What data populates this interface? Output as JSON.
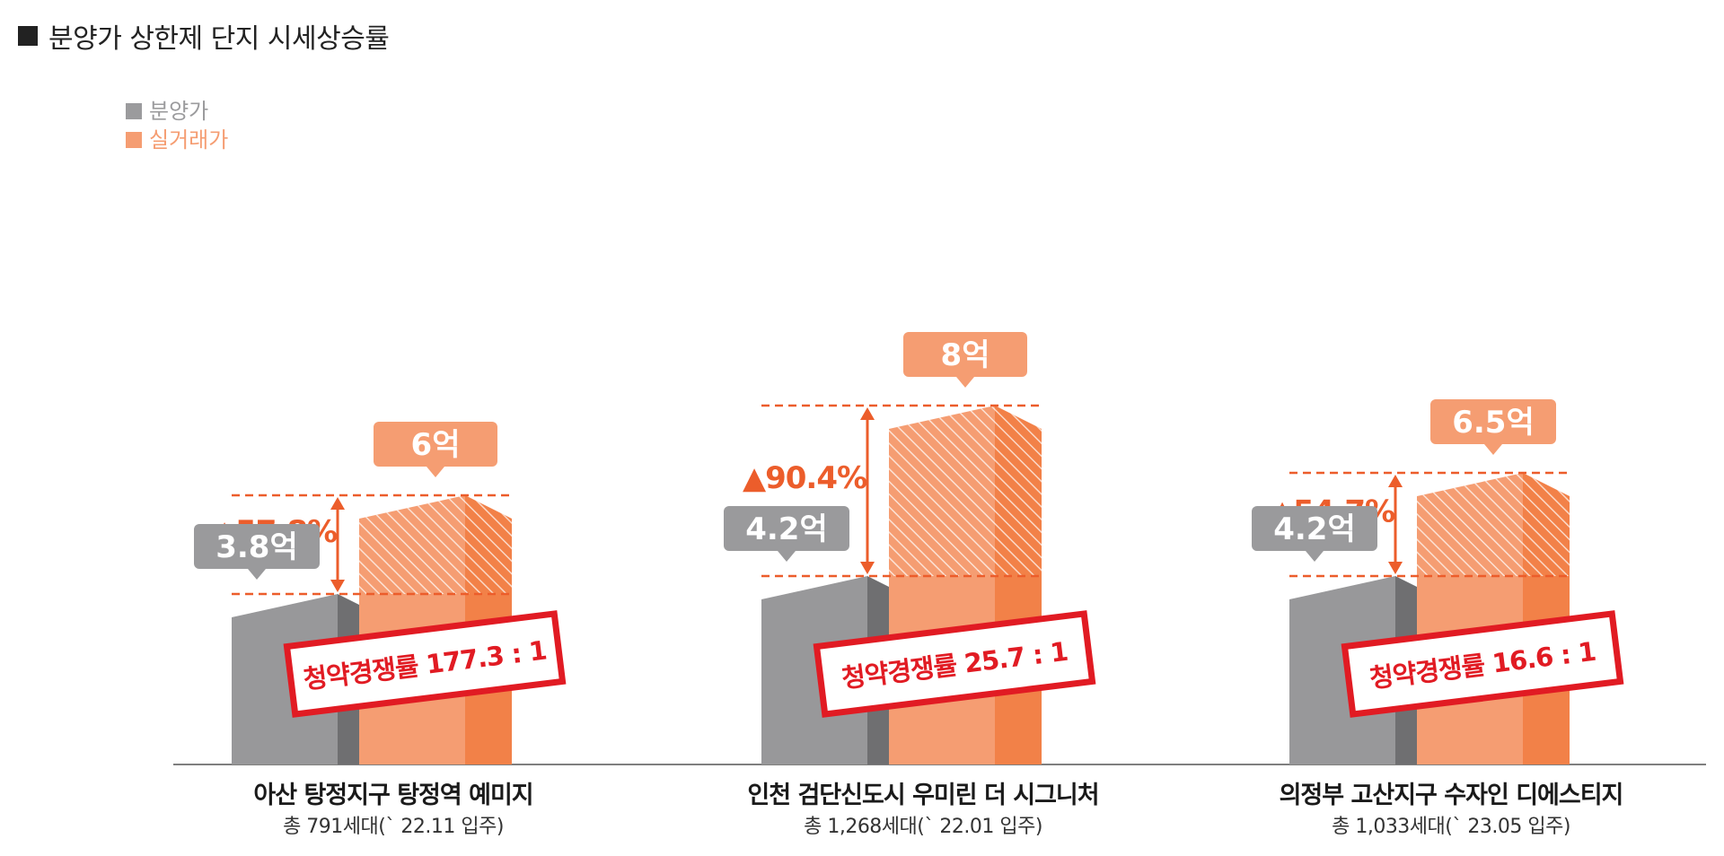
{
  "title": "분양가 상한제 단지 시세상승률",
  "legend": [
    {
      "label": "분양가",
      "color": "#9b9b9d"
    },
    {
      "label": "실거래가",
      "color": "#f59d72"
    }
  ],
  "colors": {
    "gray_front": "#98989a",
    "gray_side": "#6f6f71",
    "gray_top": "#b4b4b6",
    "orange_front": "#f59d72",
    "orange_side": "#f28148",
    "orange_top": "#f8b795",
    "accent": "#ec5d2b",
    "stamp": "#e11b23",
    "label_gray": "#9a9a9c",
    "label_orange": "#f59d72"
  },
  "chart_data": {
    "type": "bar",
    "title": "분양가 상한제 단지 시세상승률",
    "unit": "억",
    "series": [
      {
        "name": "분양가",
        "values": [
          3.8,
          4.2,
          4.2
        ]
      },
      {
        "name": "실거래가",
        "values": [
          6,
          8,
          6.5
        ]
      }
    ],
    "items": [
      {
        "name": "아산 탕정지구 탕정역 예미지",
        "sub": "총 791세대(` 22.11 입주)",
        "sale": 3.8,
        "sale_label": "3.8억",
        "real": 6,
        "real_label": "6억",
        "rise": "▲57.8%",
        "competition": "청약경쟁률 177.3 : 1"
      },
      {
        "name": "인천 검단신도시 우미린 더 시그니처",
        "sub": "총 1,268세대(` 22.01 입주)",
        "sale": 4.2,
        "sale_label": "4.2억",
        "real": 8,
        "real_label": "8억",
        "rise": "▲90.4%",
        "competition": "청약경쟁률 25.7 : 1"
      },
      {
        "name": "의정부 고산지구 수자인 디에스티지",
        "sub": "총 1,033세대(` 23.05 입주)",
        "sale": 4.2,
        "sale_label": "4.2억",
        "real": 6.5,
        "real_label": "6.5억",
        "rise": "▲54.7%",
        "competition": "청약경쟁률 16.6 : 1"
      }
    ]
  }
}
